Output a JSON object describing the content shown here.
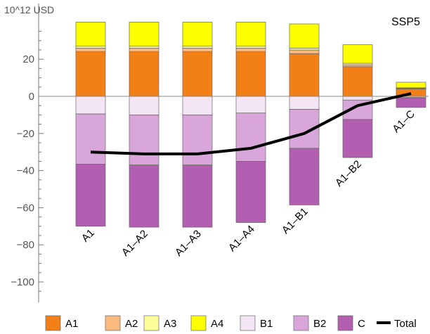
{
  "chart_data": {
    "type": "bar",
    "stacked": true,
    "scenario_label": "SSP5",
    "unit_label": "10^12 USD",
    "categories": [
      "A1",
      "A1–A2",
      "A1–A3",
      "A1–A4",
      "A1–B1",
      "A1–B2",
      "A1–C"
    ],
    "yticks": [
      -100,
      -80,
      -60,
      -40,
      -20,
      0,
      20
    ],
    "ylim": [
      -110,
      40
    ],
    "series": [
      {
        "name": "A1",
        "color": "#f28017",
        "values": [
          24,
          24,
          24,
          24,
          23,
          16,
          4
        ]
      },
      {
        "name": "A2",
        "color": "#f9b97f",
        "values": [
          2,
          2,
          2,
          2,
          2,
          1,
          0.3
        ]
      },
      {
        "name": "A3",
        "color": "#ffff99",
        "values": [
          1,
          1,
          1,
          1,
          1,
          0.8,
          0.3
        ]
      },
      {
        "name": "A4",
        "color": "#ffff00",
        "values": [
          13,
          13,
          13,
          13,
          13,
          10,
          3
        ]
      },
      {
        "name": "B1",
        "color": "#f3e5f3",
        "values": [
          -9.5,
          -10,
          -10,
          -9,
          -7,
          -2,
          -0.5
        ]
      },
      {
        "name": "B2",
        "color": "#d9a6d9",
        "values": [
          -27,
          -27,
          -27,
          -26,
          -21,
          -10.5,
          -0.5
        ]
      },
      {
        "name": "C",
        "color": "#b25fb2",
        "values": [
          -33.5,
          -33.5,
          -33.5,
          -33,
          -30.5,
          -20.5,
          -5
        ]
      }
    ],
    "total": {
      "name": "Total",
      "color": "#000000",
      "values": [
        -30,
        -31,
        -31,
        -28,
        -20,
        -5,
        1.5
      ]
    },
    "legend_position": "bottom"
  }
}
